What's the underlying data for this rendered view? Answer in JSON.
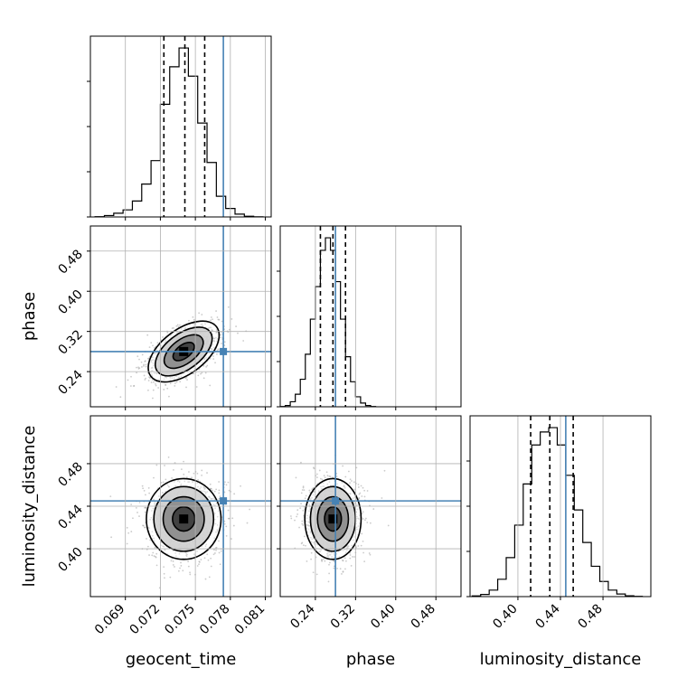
{
  "chart_data": {
    "type": "corner",
    "parameters": [
      "geocent_time",
      "phase",
      "luminosity_distance"
    ],
    "axis_labels": {
      "x": [
        "geocent_time",
        "phase",
        "luminosity_distance"
      ],
      "y": [
        "phase",
        "luminosity_distance"
      ]
    },
    "ranges": {
      "geocent_time": [
        0.066,
        0.0815
      ],
      "phase": [
        0.17,
        0.53
      ],
      "luminosity_distance": [
        0.355,
        0.525
      ]
    },
    "ticks": {
      "geocent_time": [
        0.069,
        0.072,
        0.075,
        0.078,
        0.081
      ],
      "phase": [
        0.24,
        0.32,
        0.4,
        0.48
      ],
      "luminosity_distance": [
        0.4,
        0.44,
        0.48
      ]
    },
    "tick_labels": {
      "geocent_time": [
        "0.069",
        "0.072",
        "0.075",
        "0.078",
        "0.081"
      ],
      "phase": [
        "0.24",
        "0.32",
        "0.40",
        "0.48"
      ],
      "luminosity_distance": [
        "0.40",
        "0.44",
        "0.48"
      ]
    },
    "truths": {
      "geocent_time": 0.0774,
      "phase": 0.28,
      "luminosity_distance": 0.445
    },
    "quantiles": {
      "geocent_time": [
        0.0723,
        0.0741,
        0.0758
      ],
      "phase": [
        0.25,
        0.275,
        0.3
      ],
      "luminosity_distance": [
        0.412,
        0.43,
        0.452
      ]
    },
    "histograms": {
      "geocent_time": {
        "bin_edges": [
          0.0664,
          0.0672,
          0.068,
          0.0688,
          0.0696,
          0.0704,
          0.0712,
          0.072,
          0.0728,
          0.0736,
          0.0744,
          0.0752,
          0.076,
          0.0768,
          0.0776,
          0.0784,
          0.0792,
          0.08,
          0.0808
        ],
        "counts": [
          0.3,
          1.5,
          4,
          7.5,
          17,
          35,
          60,
          120,
          160,
          180,
          150,
          100,
          58,
          22,
          9,
          3,
          0.8,
          0.2
        ]
      },
      "phase": {
        "bin_edges": [
          0.17,
          0.18,
          0.19,
          0.2,
          0.21,
          0.22,
          0.23,
          0.24,
          0.25,
          0.26,
          0.27,
          0.28,
          0.29,
          0.3,
          0.31,
          0.32,
          0.33,
          0.34,
          0.35,
          0.36
        ],
        "counts": [
          0.2,
          1,
          4,
          10,
          22,
          42,
          70,
          96,
          125,
          135,
          125,
          100,
          70,
          40,
          20,
          8,
          3,
          1,
          0.2
        ]
      },
      "luminosity_distance": {
        "bin_edges": [
          0.357,
          0.365,
          0.373,
          0.381,
          0.389,
          0.397,
          0.405,
          0.413,
          0.421,
          0.429,
          0.437,
          0.445,
          0.453,
          0.461,
          0.469,
          0.477,
          0.485,
          0.493,
          0.501,
          0.509,
          0.517
        ],
        "counts": [
          0.3,
          1,
          3,
          8,
          18,
          33,
          52,
          70,
          76,
          78,
          70,
          56,
          40,
          25,
          14,
          7,
          3,
          1.2,
          0.4,
          0.1
        ]
      }
    },
    "joint": [
      {
        "x": "geocent_time",
        "y": "phase",
        "center": [
          0.074,
          0.28
        ],
        "std": [
          0.0016,
          0.028
        ],
        "correlation": 0.55
      },
      {
        "x": "geocent_time",
        "y": "luminosity_distance",
        "center": [
          0.074,
          0.428
        ],
        "std": [
          0.0016,
          0.019
        ],
        "correlation": 0.0
      },
      {
        "x": "phase",
        "y": "luminosity_distance",
        "center": [
          0.275,
          0.428
        ],
        "std": [
          0.028,
          0.019
        ],
        "correlation": 0.0
      }
    ],
    "grid": true,
    "truth_color": "#4682b4",
    "line_color": "#000000",
    "scatter_color": "#a0a0a0"
  }
}
